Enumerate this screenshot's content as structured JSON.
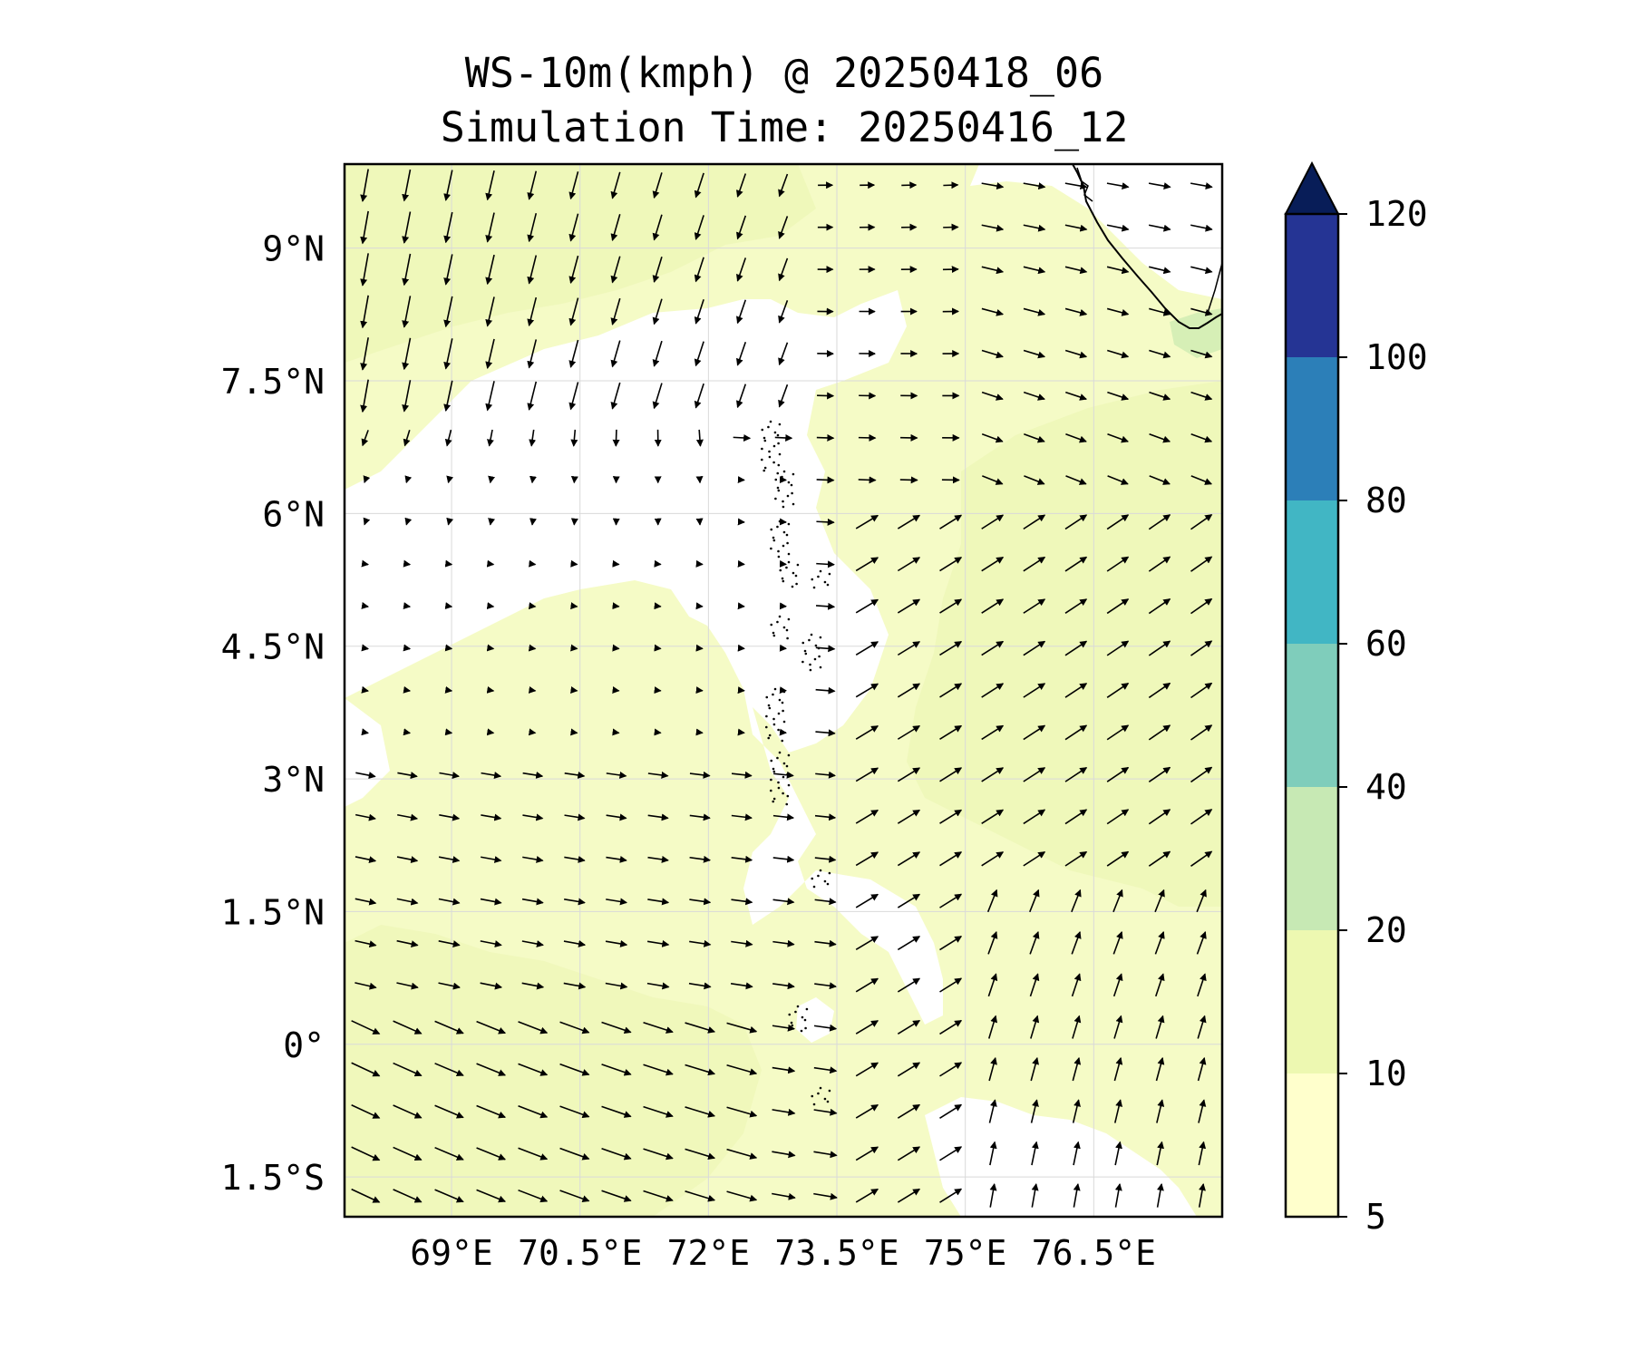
{
  "title": {
    "line1": "WS-10m(kmph) @ 20250418_06",
    "line2": "Simulation Time: 20250416_12"
  },
  "map": {
    "lon_range": [
      67.75,
      78.0
    ],
    "lat_range": [
      -1.95,
      9.95
    ],
    "x_ticks": [
      {
        "value": 69,
        "label": "69°E"
      },
      {
        "value": 70.5,
        "label": "70.5°E"
      },
      {
        "value": 72,
        "label": "72°E"
      },
      {
        "value": 73.5,
        "label": "73.5°E"
      },
      {
        "value": 75,
        "label": "75°E"
      },
      {
        "value": 76.5,
        "label": "76.5°E"
      }
    ],
    "y_ticks": [
      {
        "value": 9,
        "label": "9°N"
      },
      {
        "value": 7.5,
        "label": "7.5°N"
      },
      {
        "value": 6,
        "label": "6°N"
      },
      {
        "value": 4.5,
        "label": "4.5°N"
      },
      {
        "value": 3,
        "label": "3°N"
      },
      {
        "value": 1.5,
        "label": "1.5°N"
      },
      {
        "value": 0,
        "label": "0°"
      },
      {
        "value": -1.5,
        "label": "1.5°S"
      }
    ],
    "gridlines": true
  },
  "colorbar": {
    "levels": [
      5,
      10,
      20,
      40,
      60,
      80,
      100,
      120
    ],
    "labels": [
      "5",
      "10",
      "20",
      "40",
      "60",
      "80",
      "100",
      "120"
    ],
    "colors": [
      "#ffffcc",
      "#edf8b1",
      "#c7e9b4",
      "#7fcdbb",
      "#41b6c4",
      "#2c7fb8",
      "#253494"
    ],
    "extend_color": "#081d58",
    "extend": "max"
  }
}
